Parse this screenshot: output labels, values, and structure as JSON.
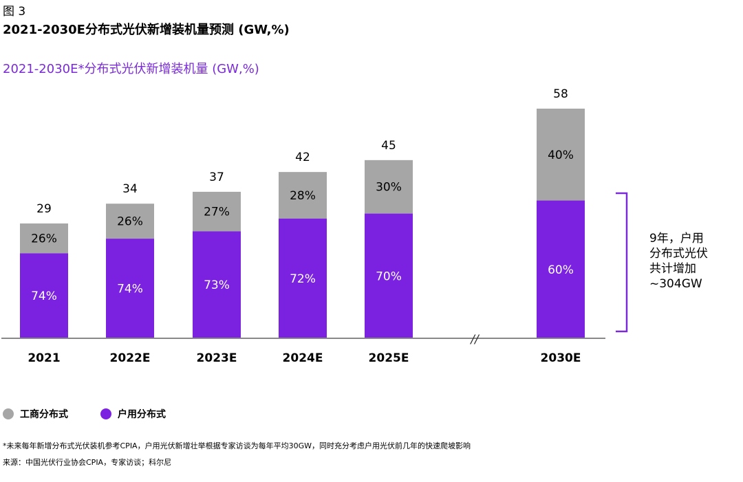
{
  "header": {
    "figure_label": "图 3",
    "title": "2021-2030E分布式光伏新增装机量预测 (GW,%)",
    "subtitle": "2021-2030E*分布式光伏新增装机量 (GW,%)"
  },
  "colors": {
    "residential": "#7b22e0",
    "commercial": "#a6a6a6",
    "accent": "#7a2bd6",
    "axis": "#888888"
  },
  "chart_data": {
    "type": "bar",
    "stacked": true,
    "categories": [
      "2021",
      "2022E",
      "2023E",
      "2024E",
      "2025E",
      "2030E"
    ],
    "totals": [
      29,
      34,
      37,
      42,
      45,
      58
    ],
    "axis_break_between": [
      "2025E",
      "2030E"
    ],
    "axis_break_symbol": "//",
    "series": [
      {
        "name": "户用分布式",
        "color": "#7b22e0",
        "percent_labels": [
          "74%",
          "74%",
          "73%",
          "72%",
          "70%",
          "60%"
        ],
        "share": [
          74,
          74,
          73,
          72,
          70,
          60
        ]
      },
      {
        "name": "工商分布式",
        "color": "#a6a6a6",
        "percent_labels": [
          "26%",
          "26%",
          "27%",
          "28%",
          "30%",
          "40%"
        ],
        "share": [
          26,
          26,
          27,
          28,
          30,
          40
        ]
      }
    ],
    "ylim": [
      0,
      58
    ],
    "grid": false,
    "legend_position": "bottom-left",
    "annotation": {
      "lines": [
        "9年，户用",
        "分布式光伏",
        "共计增加",
        "~304GW"
      ],
      "bracket_span_series": "户用分布式"
    }
  },
  "legend": {
    "items": [
      {
        "label": "工商分布式",
        "color": "#a6a6a6"
      },
      {
        "label": "户用分布式",
        "color": "#7b22e0"
      }
    ]
  },
  "footnotes": {
    "note": "*未来每年新增分布式光伏装机参考CPIA，户用光伏新增壮举根据专家访谈为每年平均30GW，同时充分考虑户用光伏前几年的快速爬坡影响",
    "source": "来源：中国光伏行业协会CPIA，专家访谈；科尔尼"
  }
}
